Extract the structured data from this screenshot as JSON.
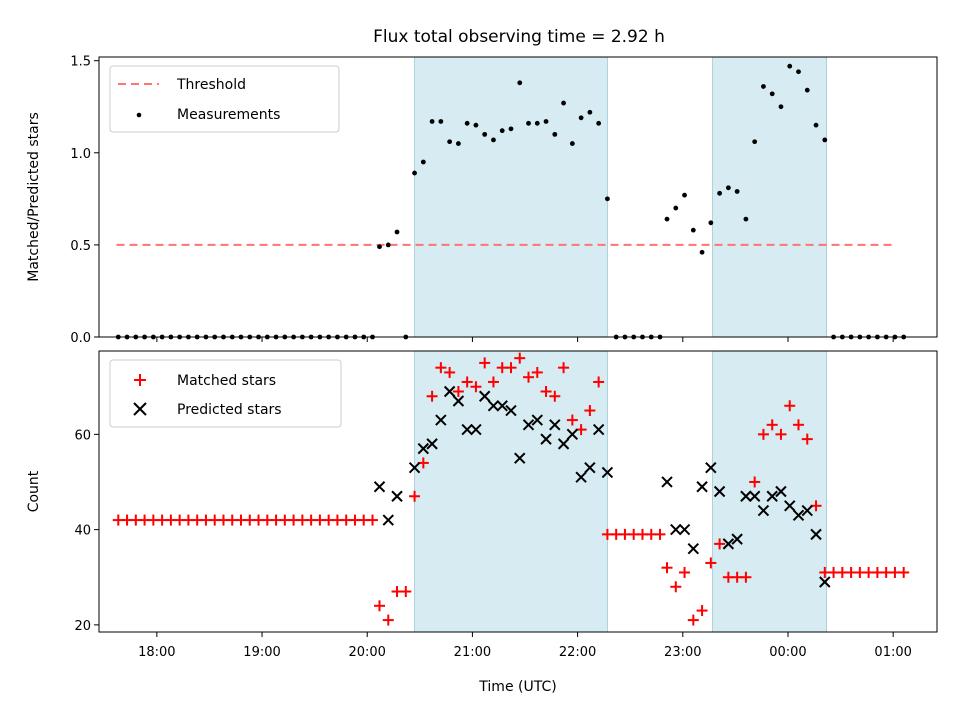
{
  "title": "Flux total observing time = 2.92 h",
  "chart_data": [
    {
      "type": "scatter",
      "ylabel": "Matched/Predicted stars",
      "xlabel": "",
      "ylim": [
        0,
        1.52
      ],
      "xlim": [
        "17:27",
        "01:25"
      ],
      "yticks": [
        0.0,
        0.5,
        1.0,
        1.5
      ],
      "ytick_labels": [
        "0.0",
        "0.5",
        "1.0",
        "1.5"
      ],
      "legend_position": "top-left",
      "threshold": {
        "name": "Threshold",
        "y": 0.5,
        "x_start": "17:37",
        "x_end": "01:01",
        "color": "#ff7373"
      },
      "shaded_regions": [
        [
          "20:27",
          "22:17"
        ],
        [
          "23:17",
          "00:22"
        ]
      ],
      "series": [
        {
          "name": "Measurements",
          "color": "#000000",
          "points": [
            [
              "17:38",
              0
            ],
            [
              "17:43",
              0
            ],
            [
              "17:48",
              0
            ],
            [
              "17:53",
              0
            ],
            [
              "17:58",
              0
            ],
            [
              "18:03",
              0
            ],
            [
              "18:08",
              0
            ],
            [
              "18:13",
              0
            ],
            [
              "18:18",
              0
            ],
            [
              "18:23",
              0
            ],
            [
              "18:28",
              0
            ],
            [
              "18:33",
              0
            ],
            [
              "18:38",
              0
            ],
            [
              "18:43",
              0
            ],
            [
              "18:48",
              0
            ],
            [
              "18:53",
              0
            ],
            [
              "18:58",
              0
            ],
            [
              "19:03",
              0
            ],
            [
              "19:08",
              0
            ],
            [
              "19:13",
              0
            ],
            [
              "19:18",
              0
            ],
            [
              "19:23",
              0
            ],
            [
              "19:28",
              0
            ],
            [
              "19:33",
              0
            ],
            [
              "19:38",
              0
            ],
            [
              "19:43",
              0
            ],
            [
              "19:48",
              0
            ],
            [
              "19:53",
              0
            ],
            [
              "19:58",
              0
            ],
            [
              "20:03",
              0
            ],
            [
              "20:07",
              0.49
            ],
            [
              "20:12",
              0.5
            ],
            [
              "20:17",
              0.57
            ],
            [
              "20:22",
              0.0
            ],
            [
              "20:27",
              0.89
            ],
            [
              "20:32",
              0.95
            ],
            [
              "20:37",
              1.17
            ],
            [
              "20:42",
              1.17
            ],
            [
              "20:47",
              1.06
            ],
            [
              "20:52",
              1.05
            ],
            [
              "20:57",
              1.16
            ],
            [
              "21:02",
              1.15
            ],
            [
              "21:07",
              1.1
            ],
            [
              "21:12",
              1.07
            ],
            [
              "21:17",
              1.12
            ],
            [
              "21:22",
              1.13
            ],
            [
              "21:27",
              1.38
            ],
            [
              "21:32",
              1.16
            ],
            [
              "21:37",
              1.16
            ],
            [
              "21:42",
              1.17
            ],
            [
              "21:47",
              1.1
            ],
            [
              "21:52",
              1.27
            ],
            [
              "21:57",
              1.05
            ],
            [
              "22:02",
              1.19
            ],
            [
              "22:07",
              1.22
            ],
            [
              "22:12",
              1.16
            ],
            [
              "22:17",
              0.75
            ],
            [
              "22:22",
              0
            ],
            [
              "22:27",
              0
            ],
            [
              "22:32",
              0
            ],
            [
              "22:37",
              0
            ],
            [
              "22:42",
              0
            ],
            [
              "22:47",
              0
            ],
            [
              "22:51",
              0.64
            ],
            [
              "22:56",
              0.7
            ],
            [
              "23:01",
              0.77
            ],
            [
              "23:06",
              0.58
            ],
            [
              "23:11",
              0.46
            ],
            [
              "23:16",
              0.62
            ],
            [
              "23:21",
              0.78
            ],
            [
              "23:26",
              0.81
            ],
            [
              "23:31",
              0.79
            ],
            [
              "23:36",
              0.64
            ],
            [
              "23:41",
              1.06
            ],
            [
              "23:46",
              1.36
            ],
            [
              "23:51",
              1.32
            ],
            [
              "23:56",
              1.25
            ],
            [
              "00:01",
              1.47
            ],
            [
              "00:06",
              1.44
            ],
            [
              "00:11",
              1.34
            ],
            [
              "00:16",
              1.15
            ],
            [
              "00:21",
              1.07
            ],
            [
              "00:26",
              0
            ],
            [
              "00:31",
              0
            ],
            [
              "00:36",
              0
            ],
            [
              "00:41",
              0
            ],
            [
              "00:46",
              0
            ],
            [
              "00:51",
              0
            ],
            [
              "00:56",
              0
            ],
            [
              "01:01",
              0
            ],
            [
              "01:06",
              0
            ]
          ]
        }
      ]
    },
    {
      "type": "scatter",
      "ylabel": "Count",
      "xlabel": "Time (UTC)",
      "ylim": [
        18.5,
        77.5
      ],
      "xlim": [
        "17:27",
        "01:25"
      ],
      "yticks": [
        20,
        40,
        60
      ],
      "ytick_labels": [
        "20",
        "40",
        "60"
      ],
      "xticks": [
        "18:00",
        "19:00",
        "20:00",
        "21:00",
        "22:00",
        "23:00",
        "00:00",
        "01:00"
      ],
      "xtick_labels": [
        "18:00",
        "19:00",
        "20:00",
        "21:00",
        "22:00",
        "23:00",
        "00:00",
        "01:00"
      ],
      "legend_position": "top-left",
      "shaded_regions": [
        [
          "20:27",
          "22:17"
        ],
        [
          "23:17",
          "00:22"
        ]
      ],
      "series": [
        {
          "name": "Matched stars",
          "marker": "plus",
          "color": "#ff0000",
          "points": [
            [
              "17:38",
              42
            ],
            [
              "17:43",
              42
            ],
            [
              "17:48",
              42
            ],
            [
              "17:53",
              42
            ],
            [
              "17:58",
              42
            ],
            [
              "18:03",
              42
            ],
            [
              "18:08",
              42
            ],
            [
              "18:13",
              42
            ],
            [
              "18:18",
              42
            ],
            [
              "18:23",
              42
            ],
            [
              "18:28",
              42
            ],
            [
              "18:33",
              42
            ],
            [
              "18:38",
              42
            ],
            [
              "18:43",
              42
            ],
            [
              "18:48",
              42
            ],
            [
              "18:53",
              42
            ],
            [
              "18:58",
              42
            ],
            [
              "19:03",
              42
            ],
            [
              "19:08",
              42
            ],
            [
              "19:13",
              42
            ],
            [
              "19:18",
              42
            ],
            [
              "19:23",
              42
            ],
            [
              "19:28",
              42
            ],
            [
              "19:33",
              42
            ],
            [
              "19:38",
              42
            ],
            [
              "19:43",
              42
            ],
            [
              "19:48",
              42
            ],
            [
              "19:53",
              42
            ],
            [
              "19:58",
              42
            ],
            [
              "20:03",
              42
            ],
            [
              "20:07",
              24
            ],
            [
              "20:12",
              21
            ],
            [
              "20:17",
              27
            ],
            [
              "20:22",
              27
            ],
            [
              "20:27",
              47
            ],
            [
              "20:32",
              54
            ],
            [
              "20:37",
              68
            ],
            [
              "20:42",
              74
            ],
            [
              "20:47",
              73
            ],
            [
              "20:52",
              69
            ],
            [
              "20:57",
              71
            ],
            [
              "21:02",
              70
            ],
            [
              "21:07",
              75
            ],
            [
              "21:12",
              71
            ],
            [
              "21:17",
              74
            ],
            [
              "21:22",
              74
            ],
            [
              "21:27",
              76
            ],
            [
              "21:32",
              72
            ],
            [
              "21:37",
              73
            ],
            [
              "21:42",
              69
            ],
            [
              "21:47",
              68
            ],
            [
              "21:52",
              74
            ],
            [
              "21:57",
              63
            ],
            [
              "22:02",
              61
            ],
            [
              "22:07",
              65
            ],
            [
              "22:12",
              71
            ],
            [
              "22:17",
              39
            ],
            [
              "22:22",
              39
            ],
            [
              "22:27",
              39
            ],
            [
              "22:32",
              39
            ],
            [
              "22:37",
              39
            ],
            [
              "22:42",
              39
            ],
            [
              "22:47",
              39
            ],
            [
              "22:51",
              32
            ],
            [
              "22:56",
              28
            ],
            [
              "23:01",
              31
            ],
            [
              "23:06",
              21
            ],
            [
              "23:11",
              23
            ],
            [
              "23:16",
              33
            ],
            [
              "23:21",
              37
            ],
            [
              "23:26",
              30
            ],
            [
              "23:31",
              30
            ],
            [
              "23:36",
              30
            ],
            [
              "23:41",
              50
            ],
            [
              "23:46",
              60
            ],
            [
              "23:51",
              62
            ],
            [
              "23:56",
              60
            ],
            [
              "00:01",
              66
            ],
            [
              "00:06",
              62
            ],
            [
              "00:11",
              59
            ],
            [
              "00:16",
              45
            ],
            [
              "00:21",
              31
            ],
            [
              "00:26",
              31
            ],
            [
              "00:31",
              31
            ],
            [
              "00:36",
              31
            ],
            [
              "00:41",
              31
            ],
            [
              "00:46",
              31
            ],
            [
              "00:51",
              31
            ],
            [
              "00:56",
              31
            ],
            [
              "01:01",
              31
            ],
            [
              "01:06",
              31
            ]
          ]
        },
        {
          "name": "Predicted stars",
          "marker": "x",
          "color": "#000000",
          "points": [
            [
              "20:07",
              49
            ],
            [
              "20:12",
              42
            ],
            [
              "20:17",
              47
            ],
            [
              "20:27",
              53
            ],
            [
              "20:32",
              57
            ],
            [
              "20:37",
              58
            ],
            [
              "20:42",
              63
            ],
            [
              "20:47",
              69
            ],
            [
              "20:52",
              67
            ],
            [
              "20:57",
              61
            ],
            [
              "21:02",
              61
            ],
            [
              "21:07",
              68
            ],
            [
              "21:12",
              66
            ],
            [
              "21:17",
              66
            ],
            [
              "21:22",
              65
            ],
            [
              "21:27",
              55
            ],
            [
              "21:32",
              62
            ],
            [
              "21:37",
              63
            ],
            [
              "21:42",
              59
            ],
            [
              "21:47",
              62
            ],
            [
              "21:52",
              58
            ],
            [
              "21:57",
              60
            ],
            [
              "22:02",
              51
            ],
            [
              "22:07",
              53
            ],
            [
              "22:12",
              61
            ],
            [
              "22:17",
              52
            ],
            [
              "22:51",
              50
            ],
            [
              "22:56",
              40
            ],
            [
              "23:01",
              40
            ],
            [
              "23:06",
              36
            ],
            [
              "23:11",
              49
            ],
            [
              "23:16",
              53
            ],
            [
              "23:21",
              48
            ],
            [
              "23:26",
              37
            ],
            [
              "23:31",
              38
            ],
            [
              "23:36",
              47
            ],
            [
              "23:41",
              47
            ],
            [
              "23:46",
              44
            ],
            [
              "23:51",
              47
            ],
            [
              "23:56",
              48
            ],
            [
              "00:01",
              45
            ],
            [
              "00:06",
              43
            ],
            [
              "00:11",
              44
            ],
            [
              "00:16",
              39
            ],
            [
              "00:21",
              29
            ]
          ]
        }
      ]
    }
  ]
}
